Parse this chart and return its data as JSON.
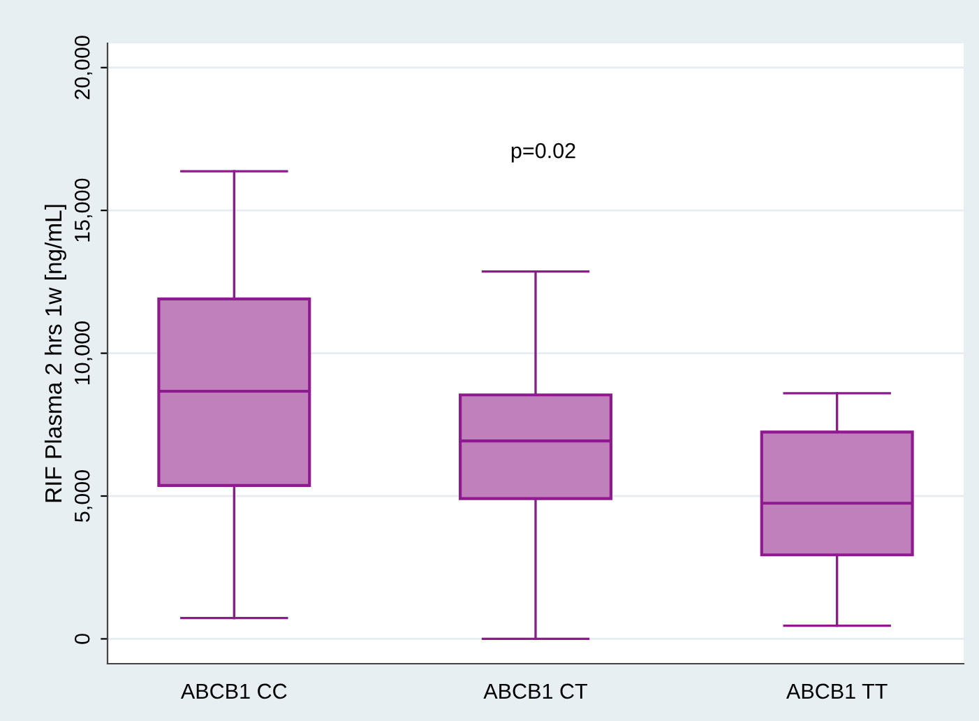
{
  "chart_data": {
    "type": "box",
    "categories": [
      "ABCB1 CC",
      "ABCB1 CT",
      "ABCB1 TT"
    ],
    "boxes": [
      {
        "low": 730,
        "q1": 5370,
        "median": 8670,
        "q3": 11900,
        "high": 16370
      },
      {
        "low": 0,
        "q1": 4910,
        "median": 6930,
        "q3": 8540,
        "high": 12860
      },
      {
        "low": 460,
        "q1": 2940,
        "median": 4750,
        "q3": 7240,
        "high": 8600
      }
    ],
    "color": "#c080bc",
    "ylabel": "RIF Plasma 2 hrs 1w [ng/mL]",
    "ylim": [
      -870,
      20850
    ],
    "yticks": [
      {
        "value": 0,
        "label": "0"
      },
      {
        "value": 5000,
        "label": "5,000"
      },
      {
        "value": 10000,
        "label": "10,000"
      },
      {
        "value": 15000,
        "label": "15,000"
      },
      {
        "value": 20000,
        "label": "20,000"
      }
    ],
    "annotations": [
      "p=0.02"
    ],
    "grid": "y"
  }
}
